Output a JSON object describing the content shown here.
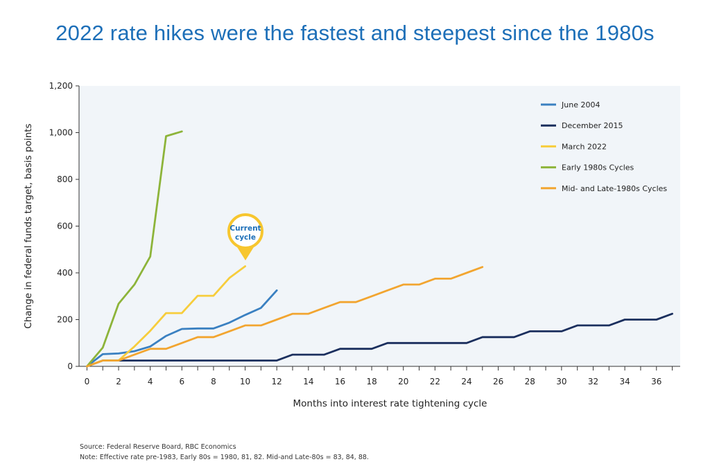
{
  "title": "2022 rate hikes were the fastest and steepest since the 1980s",
  "source": "Source: Federal Reserve Board, RBC Economics",
  "note": "Note: Effective rate pre-1983, Early 80s = 1980, 81, 82. Mid-and Late-80s = 83, 84, 88.",
  "callout": {
    "line1": "Current",
    "line2": "cycle",
    "color": "#f7c62f",
    "text_color": "#1d6fb8"
  },
  "chart_data": {
    "type": "line",
    "xlabel": "Months into interest rate tightening cycle",
    "ylabel": "Change in federal funds target, basis points",
    "xlim": [
      -0.5,
      37.5
    ],
    "ylim": [
      0,
      1200
    ],
    "xticks": [
      0,
      2,
      4,
      6,
      8,
      10,
      12,
      14,
      16,
      18,
      20,
      22,
      24,
      26,
      28,
      30,
      32,
      34,
      36
    ],
    "yticks": [
      0,
      200,
      400,
      600,
      800,
      1000,
      1200
    ],
    "ytick_labels": [
      "0",
      "200",
      "400",
      "600",
      "800",
      "1,000",
      "1,200"
    ],
    "grid": false,
    "plot_background": "#f1f5f9",
    "legend": "top-right",
    "series": [
      {
        "name": "June 2004",
        "color": "#3a80c1",
        "x": [
          0,
          1,
          2,
          3,
          4,
          5,
          6,
          7,
          8,
          9,
          10,
          11,
          12
        ],
        "y": [
          0,
          52,
          55,
          65,
          85,
          130,
          160,
          162,
          162,
          187,
          220,
          250,
          325
        ]
      },
      {
        "name": "December 2015",
        "color": "#1b2f5e",
        "x": [
          0,
          1,
          2,
          3,
          4,
          5,
          6,
          7,
          8,
          9,
          10,
          11,
          12,
          13,
          14,
          15,
          16,
          17,
          18,
          19,
          20,
          21,
          22,
          23,
          24,
          25,
          26,
          27,
          28,
          29,
          30,
          31,
          32,
          33,
          34,
          35,
          36,
          37
        ],
        "y": [
          0,
          25,
          25,
          25,
          25,
          25,
          25,
          25,
          25,
          25,
          25,
          25,
          25,
          50,
          50,
          50,
          75,
          75,
          75,
          100,
          100,
          100,
          100,
          100,
          100,
          125,
          125,
          125,
          150,
          150,
          150,
          175,
          175,
          175,
          200,
          200,
          200,
          225
        ]
      },
      {
        "name": "March 2022",
        "color": "#f7cd3c",
        "x": [
          0,
          1,
          2,
          3,
          4,
          5,
          6,
          7,
          8,
          9,
          10
        ],
        "y": [
          0,
          25,
          25,
          85,
          152,
          228,
          228,
          302,
          302,
          378,
          428
        ]
      },
      {
        "name": "Early 1980s Cycles",
        "color": "#8db43a",
        "x": [
          0,
          1,
          2,
          3,
          4,
          5,
          6
        ],
        "y": [
          0,
          80,
          268,
          350,
          470,
          985,
          1005
        ]
      },
      {
        "name": "Mid- and Late-1980s Cycles",
        "color": "#f2a530",
        "x": [
          0,
          1,
          2,
          3,
          4,
          5,
          6,
          7,
          8,
          9,
          10,
          11,
          12,
          13,
          14,
          15,
          16,
          17,
          18,
          19,
          20,
          21,
          22,
          23,
          24,
          25
        ],
        "y": [
          0,
          25,
          25,
          50,
          75,
          75,
          100,
          125,
          125,
          150,
          175,
          175,
          200,
          225,
          225,
          250,
          275,
          275,
          300,
          325,
          350,
          350,
          375,
          375,
          400,
          425
        ]
      }
    ]
  }
}
